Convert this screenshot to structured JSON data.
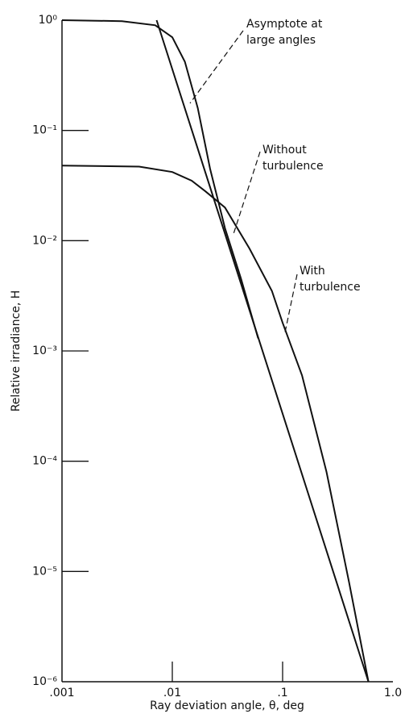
{
  "chart_data": {
    "type": "line",
    "xlabel": "Ray deviation angle, θ, deg",
    "ylabel": "Relative irradiance, H",
    "xscale": "log",
    "yscale": "log",
    "xlim": [
      0.001,
      1
    ],
    "ylim": [
      1e-06,
      1
    ],
    "xticks": [
      {
        "value": 0.001,
        "label": ".001"
      },
      {
        "value": 0.01,
        "label": ".01"
      },
      {
        "value": 0.1,
        "label": ".1"
      },
      {
        "value": 1,
        "label": "1.0"
      }
    ],
    "yticks": [
      {
        "value": 1,
        "label": "10⁰"
      },
      {
        "value": 0.1,
        "label": "10⁻¹"
      },
      {
        "value": 0.01,
        "label": "10⁻²"
      },
      {
        "value": 0.001,
        "label": "10⁻³"
      },
      {
        "value": 0.0001,
        "label": "10⁻⁴"
      },
      {
        "value": 1e-05,
        "label": "10⁻⁵"
      },
      {
        "value": 1e-06,
        "label": "10⁻⁶"
      }
    ],
    "series": [
      {
        "label": [
          "Without",
          "turbulence"
        ],
        "color": "#111111",
        "x": [
          0.001,
          0.0035,
          0.007,
          0.01,
          0.013,
          0.017,
          0.022,
          0.03,
          0.042,
          0.06
        ],
        "values": [
          1,
          0.98,
          0.9,
          0.7,
          0.42,
          0.16,
          0.045,
          0.013,
          0.0045,
          0.0013
        ]
      },
      {
        "label": [
          "With",
          "turbulence"
        ],
        "color": "#111111",
        "x": [
          0.001,
          0.005,
          0.01,
          0.015,
          0.02,
          0.03,
          0.05,
          0.08,
          0.1,
          0.15,
          0.25,
          0.4,
          0.6
        ],
        "values": [
          0.048,
          0.047,
          0.042,
          0.035,
          0.028,
          0.02,
          0.0085,
          0.0035,
          0.0018,
          0.0006,
          8e-05,
          8e-06,
          1e-06
        ]
      },
      {
        "label": [
          "Asymptote at",
          "large angles"
        ],
        "color": "#111111",
        "x": [
          0.0072,
          0.6
        ],
        "values": [
          1,
          1e-06
        ]
      }
    ]
  }
}
